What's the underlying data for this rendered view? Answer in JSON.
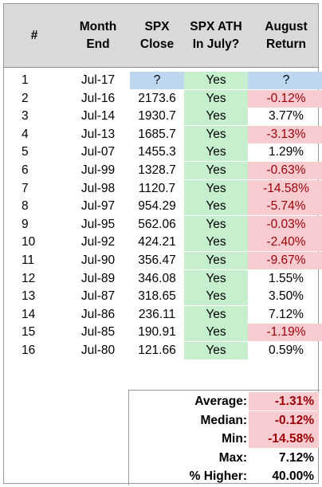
{
  "headers": {
    "num": "#",
    "month": "Month\nEnd",
    "close": "SPX\nClose",
    "ath": "SPX ATH\nIn July?",
    "ret": "August\nReturn"
  },
  "rows": [
    {
      "n": "1",
      "month": "Jul-17",
      "close": "?",
      "ath": "Yes",
      "ret": "?",
      "close_fill": "blue",
      "ret_fill": "blue"
    },
    {
      "n": "2",
      "month": "Jul-16",
      "close": "2173.6",
      "ath": "Yes",
      "ret": "-0.12%",
      "ret_fill": "neg"
    },
    {
      "n": "3",
      "month": "Jul-14",
      "close": "1930.7",
      "ath": "Yes",
      "ret": "3.77%"
    },
    {
      "n": "4",
      "month": "Jul-13",
      "close": "1685.7",
      "ath": "Yes",
      "ret": "-3.13%",
      "ret_fill": "neg"
    },
    {
      "n": "5",
      "month": "Jul-07",
      "close": "1455.3",
      "ath": "Yes",
      "ret": "1.29%"
    },
    {
      "n": "6",
      "month": "Jul-99",
      "close": "1328.7",
      "ath": "Yes",
      "ret": "-0.63%",
      "ret_fill": "neg"
    },
    {
      "n": "7",
      "month": "Jul-98",
      "close": "1120.7",
      "ath": "Yes",
      "ret": "-14.58%",
      "ret_fill": "neg"
    },
    {
      "n": "8",
      "month": "Jul-97",
      "close": "954.29",
      "ath": "Yes",
      "ret": "-5.74%",
      "ret_fill": "neg"
    },
    {
      "n": "9",
      "month": "Jul-95",
      "close": "562.06",
      "ath": "Yes",
      "ret": "-0.03%",
      "ret_fill": "neg"
    },
    {
      "n": "10",
      "month": "Jul-92",
      "close": "424.21",
      "ath": "Yes",
      "ret": "-2.40%",
      "ret_fill": "neg"
    },
    {
      "n": "11",
      "month": "Jul-90",
      "close": "356.47",
      "ath": "Yes",
      "ret": "-9.67%",
      "ret_fill": "neg"
    },
    {
      "n": "12",
      "month": "Jul-89",
      "close": "346.08",
      "ath": "Yes",
      "ret": "1.55%"
    },
    {
      "n": "13",
      "month": "Jul-87",
      "close": "318.65",
      "ath": "Yes",
      "ret": "3.50%"
    },
    {
      "n": "14",
      "month": "Jul-86",
      "close": "236.11",
      "ath": "Yes",
      "ret": "7.12%"
    },
    {
      "n": "15",
      "month": "Jul-85",
      "close": "190.91",
      "ath": "Yes",
      "ret": "-1.19%",
      "ret_fill": "neg"
    },
    {
      "n": "16",
      "month": "Jul-80",
      "close": "121.66",
      "ath": "Yes",
      "ret": "0.59%"
    }
  ],
  "stats": [
    {
      "label": "Average:",
      "value": "-1.31%",
      "fill": "neg"
    },
    {
      "label": "Median:",
      "value": "-0.12%",
      "fill": "neg"
    },
    {
      "label": "Min:",
      "value": "-14.58%",
      "fill": "neg"
    },
    {
      "label": "Max:",
      "value": "7.12%"
    },
    {
      "label": "% Higher:",
      "value": "40.00%"
    }
  ],
  "colors": {
    "header_bg": "#d9d9d9",
    "yes_fill": "#c6efce",
    "negative_fill": "#f8cbd0",
    "negative_text": "#9c0006",
    "unknown_fill": "#bdd7ee"
  }
}
